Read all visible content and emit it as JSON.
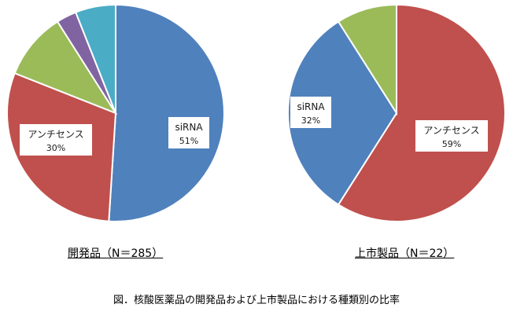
{
  "chart_data": [
    {
      "type": "pie",
      "title": "開発品（N＝285）",
      "slices": [
        {
          "name": "siRNA",
          "value": 51,
          "label": "siRNA",
          "pct_label": "51%",
          "color": "#4f81bd"
        },
        {
          "name": "アンチセンス",
          "value": 30,
          "label": "アンチセンス",
          "pct_label": "30%",
          "color": "#c0504d"
        },
        {
          "name": "",
          "value": 10,
          "label": "",
          "pct_label": "",
          "color": "#9bbb59"
        },
        {
          "name": "",
          "value": 3,
          "label": "",
          "pct_label": "",
          "color": "#8064a2"
        },
        {
          "name": "",
          "value": 6,
          "label": "",
          "pct_label": "",
          "color": "#4bacc6"
        }
      ]
    },
    {
      "type": "pie",
      "title": "上市製品（N＝22）",
      "slices": [
        {
          "name": "アンチセンス",
          "value": 59,
          "label": "アンチセンス",
          "pct_label": "59%",
          "color": "#c0504d"
        },
        {
          "name": "siRNA",
          "value": 32,
          "label": "siRNA",
          "pct_label": "32%",
          "color": "#4f81bd"
        },
        {
          "name": "",
          "value": 9,
          "label": "",
          "pct_label": "",
          "color": "#9bbb59"
        }
      ]
    }
  ],
  "caption": "図．核酸医薬品の開発品および上市製品における種類別の比率"
}
